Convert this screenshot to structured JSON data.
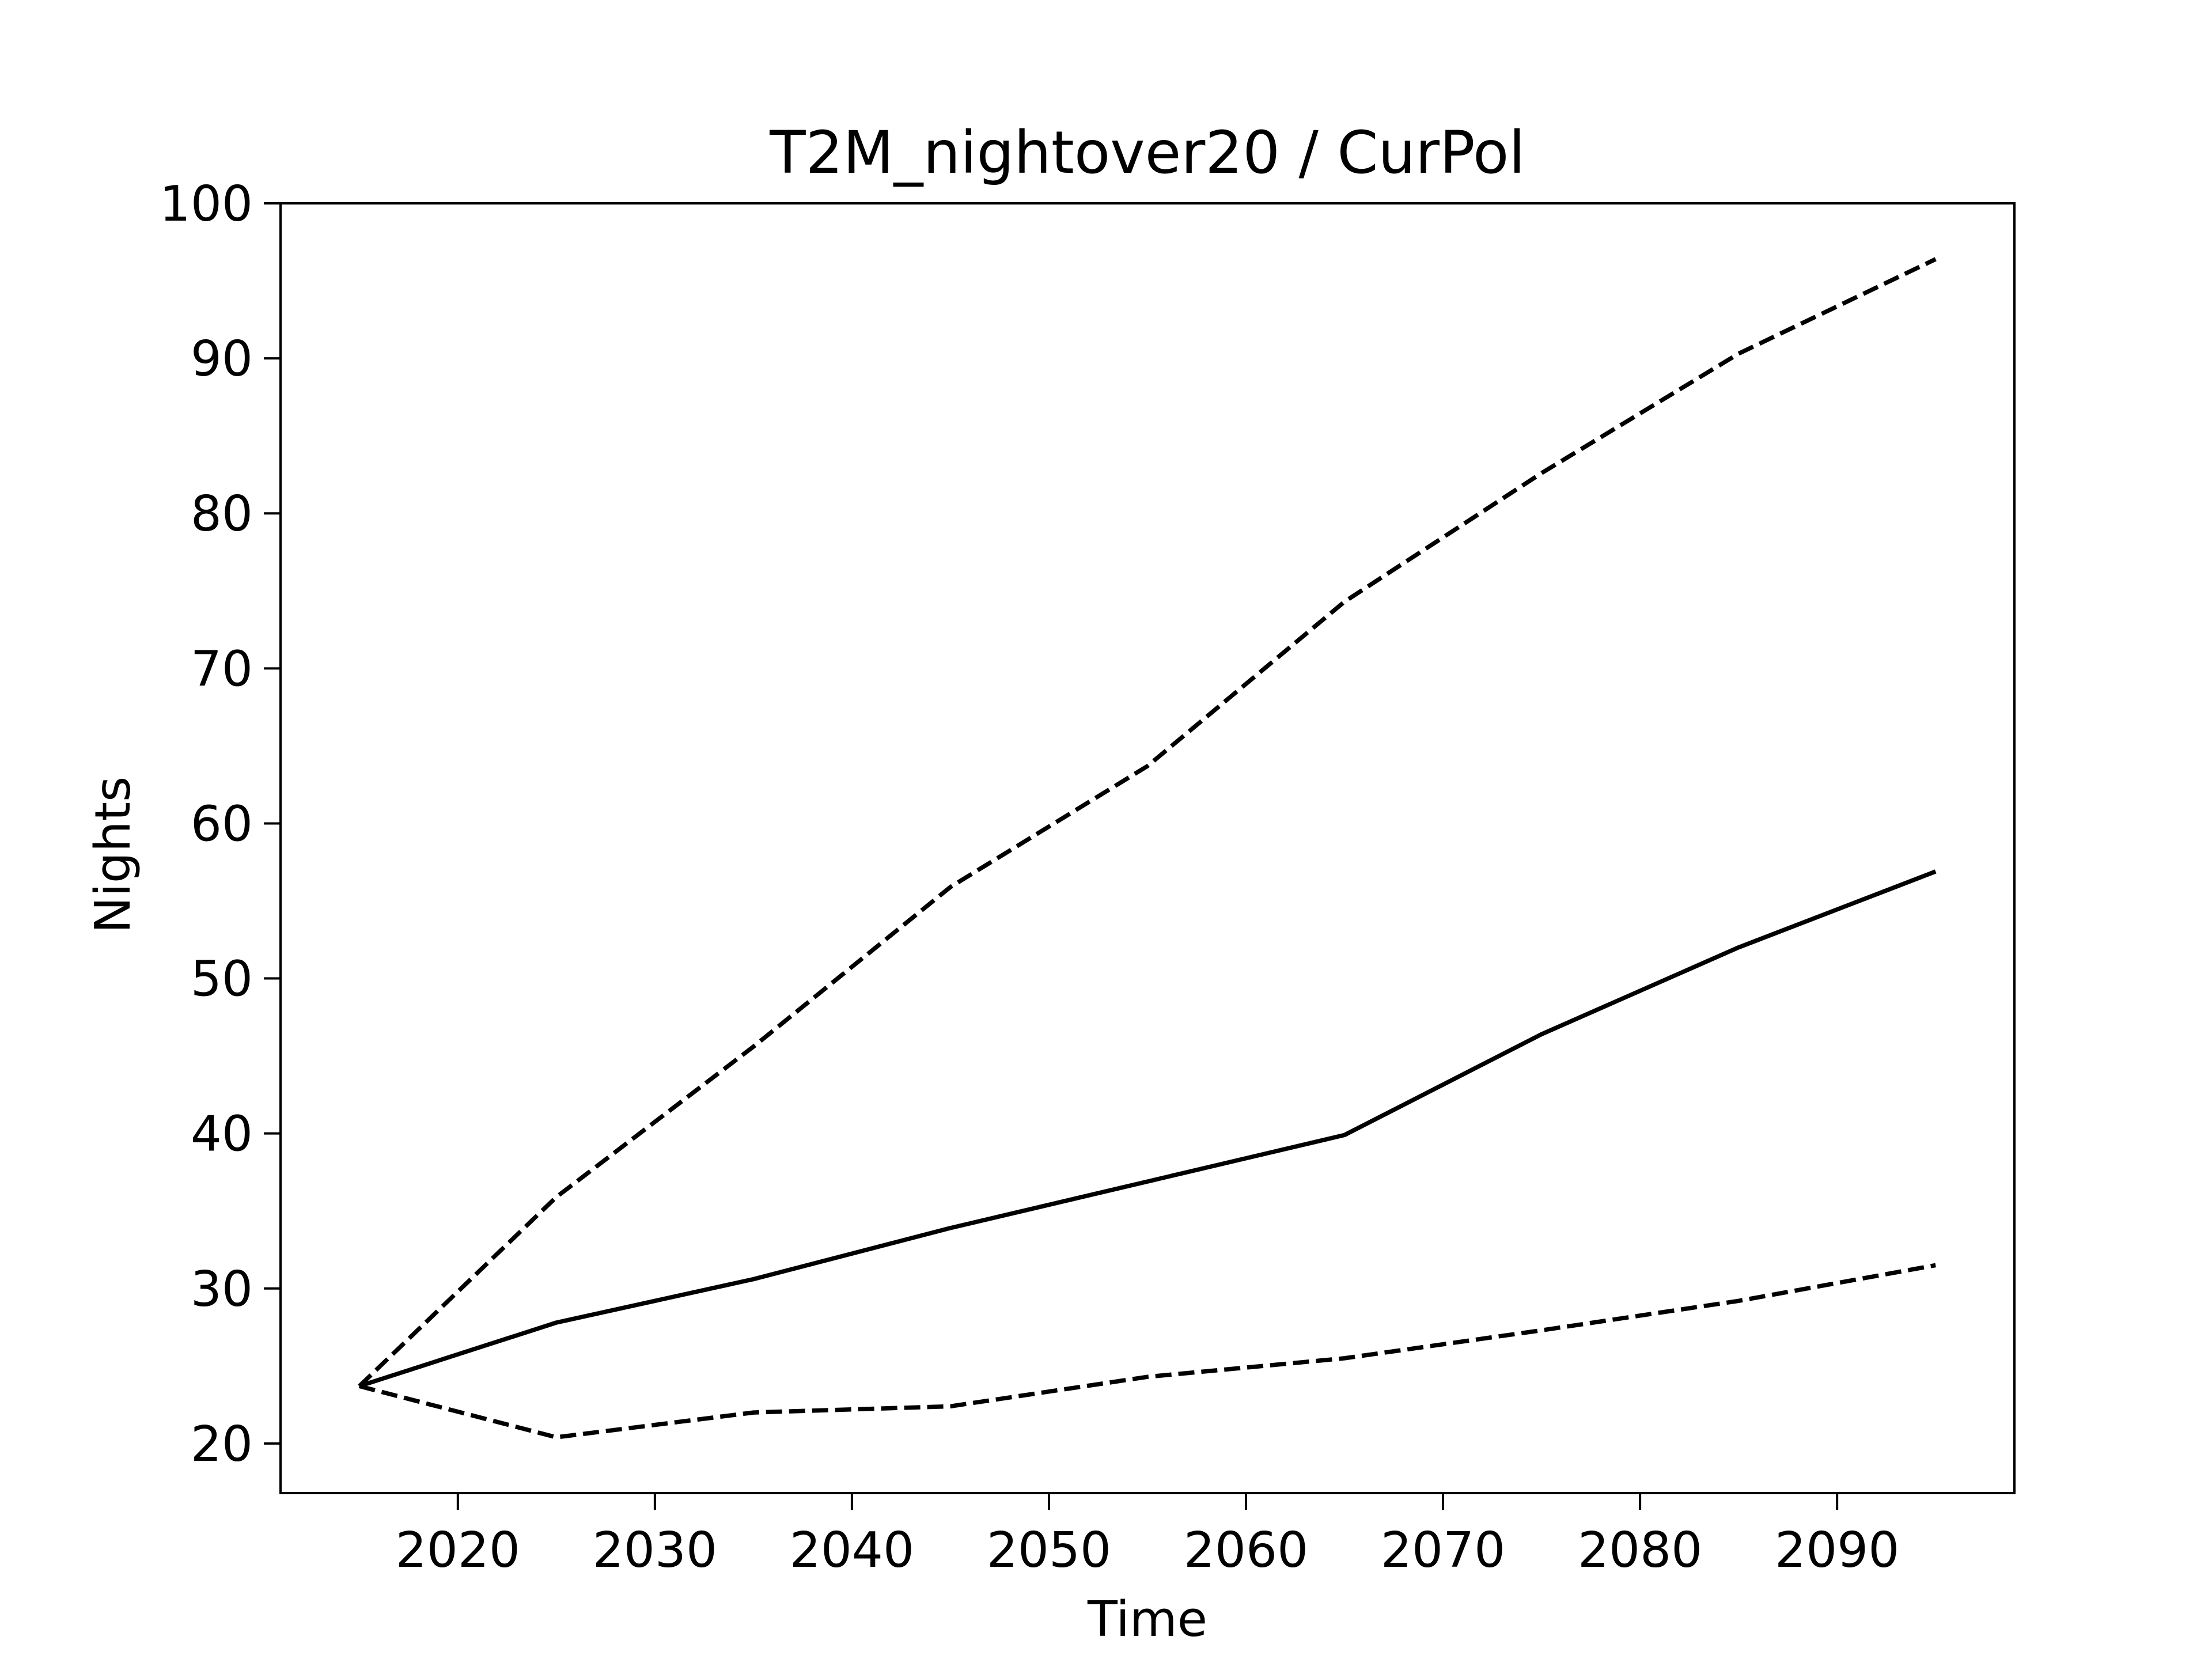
{
  "chart_data": {
    "type": "line",
    "title": "T2M_nightover20 / CurPol",
    "xlabel": "Time",
    "ylabel": "Nights",
    "xlim": [
      2011,
      2099
    ],
    "ylim": [
      16.8,
      100
    ],
    "xticks": [
      2020,
      2030,
      2040,
      2050,
      2060,
      2070,
      2080,
      2090
    ],
    "yticks": [
      20,
      30,
      40,
      50,
      60,
      70,
      80,
      90,
      100
    ],
    "grid": false,
    "legend": "none",
    "x": [
      2015,
      2025,
      2035,
      2045,
      2055,
      2065,
      2075,
      2085,
      2095
    ],
    "series": [
      {
        "style": "dashed",
        "color": "#000000",
        "values": [
          23.7,
          35.9,
          45.6,
          55.9,
          63.7,
          74.3,
          82.6,
          90.3,
          96.4
        ]
      },
      {
        "style": "solid",
        "color": "#000000",
        "values": [
          23.7,
          27.8,
          30.6,
          33.9,
          36.9,
          39.9,
          46.4,
          52.0,
          56.9
        ]
      },
      {
        "style": "dashed",
        "color": "#000000",
        "values": [
          23.7,
          20.4,
          22.0,
          22.4,
          24.3,
          25.5,
          27.3,
          29.2,
          31.5
        ]
      }
    ]
  }
}
